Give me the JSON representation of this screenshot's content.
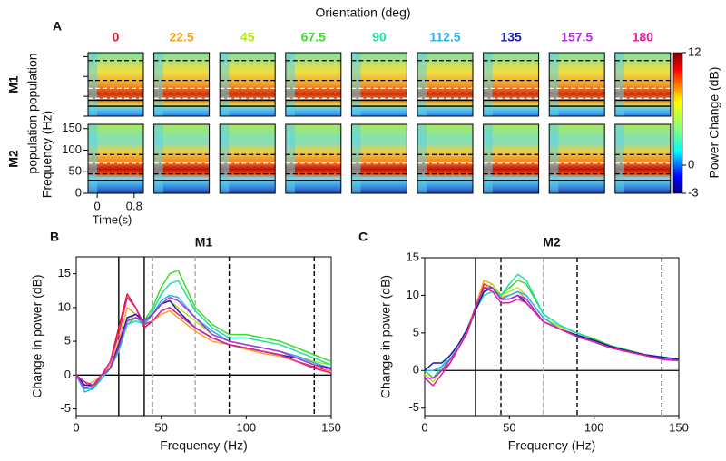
{
  "chart_data": [
    {
      "type": "heatmap",
      "label": "A",
      "title": "Orientation (deg)",
      "categories": [
        "0",
        "22.5",
        "45",
        "67.5",
        "90",
        "112.5",
        "135",
        "157.5",
        "180"
      ],
      "colors": [
        "#e8141c",
        "#f5a623",
        "#b5e61d",
        "#3ddc2c",
        "#1de0a8",
        "#2ab0e8",
        "#1a1ab0",
        "#b030e0",
        "#e020a0"
      ],
      "rows": [
        "M1",
        "M2"
      ],
      "ylabel": [
        "population population",
        "Frequency (Hz)"
      ],
      "xlabel": "Time(s)",
      "xlim": [
        -0.2,
        1.0
      ],
      "xticks": [
        0,
        0.8
      ],
      "ylim": [
        0,
        160
      ],
      "yticks": [
        0,
        50,
        100,
        150
      ],
      "clim": [
        -3,
        12
      ],
      "cticks": [
        -3,
        0,
        12
      ],
      "clabel": "Power Change (dB)",
      "row_lines": [
        [
          {
            "y": 140,
            "style": "dashed",
            "color": "black"
          },
          {
            "y": 90,
            "style": "dashed",
            "color": "black"
          },
          {
            "y": 70,
            "style": "dashed",
            "color": "white"
          },
          {
            "y": 45,
            "style": "dashed",
            "color": "white"
          },
          {
            "y": 40,
            "style": "solid",
            "color": "black"
          },
          {
            "y": 25,
            "style": "solid",
            "color": "black"
          }
        ],
        [
          {
            "y": 90,
            "style": "dashed",
            "color": "black"
          },
          {
            "y": 70,
            "style": "dashed",
            "color": "white"
          },
          {
            "y": 45,
            "style": "dashed",
            "color": "black"
          },
          {
            "y": 30,
            "style": "solid",
            "color": "black"
          }
        ]
      ]
    },
    {
      "type": "line",
      "label": "B",
      "title": "M1",
      "xlabel": "Frequency (Hz)",
      "ylabel": "Change in power (dB)",
      "xlim": [
        0,
        150
      ],
      "xticks": [
        0,
        50,
        100,
        150
      ],
      "ylim": [
        -6,
        17.5
      ],
      "yticks": [
        -5,
        0,
        5,
        10,
        15
      ],
      "hline": 0,
      "vlines": [
        {
          "x": 25,
          "style": "solid",
          "color": "black"
        },
        {
          "x": 40,
          "style": "solid",
          "color": "black"
        },
        {
          "x": 45,
          "style": "dashed",
          "color": "#aaaaaa"
        },
        {
          "x": 70,
          "style": "dashed",
          "color": "#aaaaaa"
        },
        {
          "x": 90,
          "style": "dashed",
          "color": "black"
        },
        {
          "x": 140,
          "style": "dashed",
          "color": "black"
        }
      ],
      "x": [
        0,
        5,
        10,
        15,
        20,
        25,
        30,
        35,
        40,
        45,
        50,
        55,
        60,
        70,
        80,
        90,
        100,
        110,
        120,
        130,
        140,
        150
      ],
      "series": [
        {
          "name": "0",
          "color": "#e8141c",
          "values": [
            0,
            -1,
            -2,
            0,
            2,
            7,
            12,
            10,
            7,
            8,
            9.5,
            10,
            9,
            7,
            5.5,
            4.5,
            4,
            3.5,
            3,
            2,
            1.2,
            0.5
          ]
        },
        {
          "name": "22.5",
          "color": "#f5a623",
          "values": [
            0,
            -1.5,
            -1,
            0,
            1.5,
            5,
            10,
            9,
            7.5,
            8,
            9,
            9.5,
            8.5,
            6.5,
            5,
            4.5,
            3.8,
            3.2,
            2.8,
            2,
            1,
            0.5
          ]
        },
        {
          "name": "45",
          "color": "#b5e61d",
          "values": [
            0,
            -2,
            -1.5,
            0,
            1,
            4,
            8,
            9,
            8,
            9,
            10.5,
            11,
            10,
            8,
            6,
            5,
            4.5,
            4,
            3.5,
            2.8,
            2,
            1.5
          ]
        },
        {
          "name": "67.5",
          "color": "#3ddc2c",
          "values": [
            0,
            -2,
            -2,
            -0.5,
            1,
            3.5,
            7.5,
            8.5,
            8,
            10,
            13,
            15,
            15.5,
            10,
            7.5,
            6,
            6,
            5.5,
            5,
            4,
            3,
            2
          ]
        },
        {
          "name": "90",
          "color": "#1de0a8",
          "values": [
            0,
            -2,
            -2,
            -0.5,
            1,
            3.5,
            7.5,
            8,
            7.5,
            9.5,
            12,
            13.5,
            14,
            9.5,
            7,
            5.5,
            5.5,
            5,
            4.5,
            3.5,
            2.5,
            1.5
          ]
        },
        {
          "name": "112.5",
          "color": "#2ab0e8",
          "values": [
            0,
            -2.5,
            -2,
            -0.5,
            1,
            4,
            8,
            8.5,
            7.5,
            9,
            11,
            11.8,
            11.5,
            8.5,
            6.5,
            5,
            4.5,
            4,
            3.5,
            2.8,
            1.8,
            1
          ]
        },
        {
          "name": "135",
          "color": "#1a1ab0",
          "values": [
            0,
            -1.5,
            -1.5,
            0,
            1,
            4.5,
            8.5,
            9,
            8,
            9,
            10.5,
            11,
            9.5,
            7,
            5.5,
            4.5,
            4,
            3.5,
            3,
            2.5,
            1.5,
            1
          ]
        },
        {
          "name": "157.5",
          "color": "#b030e0",
          "values": [
            0,
            -2,
            -1.5,
            0,
            1,
            4,
            8,
            8.5,
            8,
            9,
            10.5,
            11.5,
            11,
            8.5,
            6,
            5,
            4.5,
            4,
            3.5,
            2.5,
            1.5,
            0.8
          ]
        },
        {
          "name": "180",
          "color": "#e020a0",
          "values": [
            0,
            -1,
            -1.5,
            0,
            2,
            6,
            11.5,
            10,
            7.5,
            8,
            9.5,
            10,
            9,
            7,
            5.5,
            4.5,
            4,
            3.5,
            3,
            2,
            1,
            0.3
          ]
        }
      ]
    },
    {
      "type": "line",
      "label": "C",
      "title": "M2",
      "xlabel": "Frequency (Hz)",
      "ylabel": "Change in power (dB)",
      "xlim": [
        0,
        150
      ],
      "xticks": [
        0,
        50,
        100,
        150
      ],
      "ylim": [
        -6,
        15
      ],
      "yticks": [
        -5,
        0,
        5,
        10,
        15
      ],
      "hline": 0,
      "vlines": [
        {
          "x": 30,
          "style": "solid",
          "color": "black"
        },
        {
          "x": 45,
          "style": "dashed",
          "color": "black"
        },
        {
          "x": 70,
          "style": "dashed",
          "color": "#aaaaaa"
        },
        {
          "x": 90,
          "style": "dashed",
          "color": "black"
        },
        {
          "x": 140,
          "style": "dashed",
          "color": "black"
        }
      ],
      "x": [
        0,
        5,
        10,
        15,
        20,
        25,
        30,
        35,
        40,
        45,
        50,
        55,
        60,
        70,
        80,
        90,
        100,
        110,
        120,
        130,
        140,
        150
      ],
      "series": [
        {
          "name": "0",
          "color": "#e8141c",
          "values": [
            0,
            -1,
            0,
            1,
            3,
            5,
            8,
            11.5,
            11,
            9.5,
            9.5,
            10,
            9,
            6.5,
            5.5,
            4.5,
            3.8,
            3,
            2.5,
            2,
            1.5,
            1.5
          ]
        },
        {
          "name": "22.5",
          "color": "#f5a623",
          "values": [
            0,
            0,
            0.5,
            1.5,
            3,
            5.5,
            8.5,
            12,
            11.5,
            9.8,
            10,
            10.5,
            9.5,
            6.5,
            5.5,
            4.5,
            3.8,
            3,
            2.5,
            2,
            1.5,
            1.3
          ]
        },
        {
          "name": "45",
          "color": "#b5e61d",
          "values": [
            -0.5,
            -1.5,
            0,
            1.5,
            3,
            5,
            8,
            11,
            11.5,
            10,
            10.5,
            11,
            10,
            7,
            5.8,
            5,
            4,
            3.2,
            2.6,
            2,
            1.6,
            1.5
          ]
        },
        {
          "name": "67.5",
          "color": "#3ddc2c",
          "values": [
            0,
            -1,
            0,
            1.5,
            3,
            5,
            8,
            10.5,
            11,
            10,
            11,
            12,
            11.5,
            7.5,
            6,
            5,
            4.2,
            3.3,
            2.7,
            2.1,
            1.7,
            1.5
          ]
        },
        {
          "name": "90",
          "color": "#1de0a8",
          "values": [
            -1,
            -1,
            0.5,
            2,
            3,
            5,
            8,
            10,
            10.5,
            10,
            11.5,
            12.8,
            12,
            7.5,
            6,
            5,
            4,
            3.2,
            2.6,
            2,
            1.6,
            1.4
          ]
        },
        {
          "name": "112.5",
          "color": "#2ab0e8",
          "values": [
            0,
            0,
            0.5,
            1.5,
            3,
            5,
            8,
            10.5,
            11,
            9.5,
            10,
            10.5,
            10,
            7,
            5.5,
            4.7,
            3.8,
            3,
            2.5,
            2,
            1.5,
            1.3
          ]
        },
        {
          "name": "135",
          "color": "#1a1ab0",
          "values": [
            0,
            1,
            1,
            2,
            3.5,
            5.5,
            8,
            10.5,
            11,
            9.5,
            9.5,
            10,
            9,
            6.5,
            5.5,
            4.7,
            4,
            3.2,
            2.6,
            2.1,
            1.8,
            1.5
          ]
        },
        {
          "name": "157.5",
          "color": "#b030e0",
          "values": [
            -1,
            -1,
            0,
            1.5,
            3,
            5,
            8.5,
            11,
            11,
            9.5,
            9.5,
            10,
            9.5,
            6.5,
            5.5,
            4.5,
            3.8,
            3,
            2.5,
            2,
            1.5,
            1.3
          ]
        },
        {
          "name": "180",
          "color": "#e020a0",
          "values": [
            -1,
            -2,
            -0.5,
            1,
            3,
            5,
            8.5,
            11,
            10.5,
            9,
            9,
            9.5,
            9,
            6.5,
            5.5,
            4.5,
            3.8,
            3,
            2.5,
            2,
            1.5,
            1.3
          ]
        }
      ]
    }
  ]
}
